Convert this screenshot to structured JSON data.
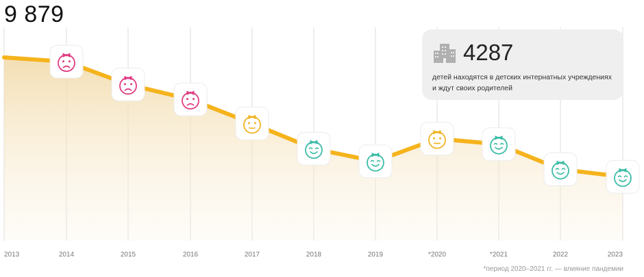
{
  "headline_value": "9 879",
  "callout": {
    "value": "4287",
    "text": "детей находятся в детских интернатных учреждениях и ждут своих родителей",
    "icon": "building-icon"
  },
  "footnote": "*период 2020–2021 гг. — влияние пандемии",
  "colors": {
    "line": "#f5b31c",
    "area_top": "#f1d9a6",
    "grid": "#dddddd",
    "sad": "#e03a82",
    "neutral": "#f0b323",
    "happy": "#3dbca8"
  },
  "chart_data": {
    "type": "line",
    "title": "",
    "xlabel": "",
    "ylabel": "",
    "grid": "vertical",
    "categories": [
      "2013",
      "2014",
      "2015",
      "2016",
      "2017",
      "2018",
      "2019",
      "*2020",
      "*2021",
      "2022",
      "2023"
    ],
    "series": [
      {
        "values": [
          9879,
          9650,
          8420,
          7620,
          6320,
          4960,
          4280,
          5500,
          5200,
          3850,
          3450
        ],
        "markers": [
          null,
          "sad",
          "sad",
          "sad",
          "neutral",
          "happy",
          "happy",
          "neutral",
          "happy",
          "happy",
          "happy"
        ]
      }
    ],
    "ylim": [
      0,
      11500
    ]
  }
}
